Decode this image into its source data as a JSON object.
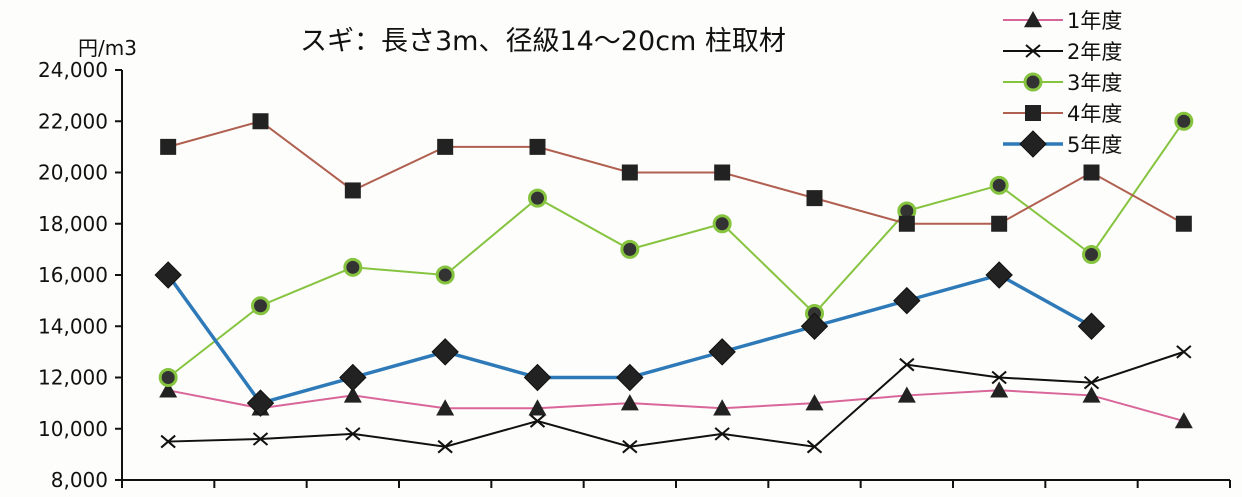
{
  "chart_data": {
    "type": "line",
    "title": "スギ：長さ3m、径級14～20cm 柱取材",
    "ylabel": "円/m3",
    "ylim": [
      8000,
      24000
    ],
    "yticks": [
      "8,000",
      "10,000",
      "12,000",
      "14,000",
      "16,000",
      "18,000",
      "20,000",
      "22,000",
      "24,000"
    ],
    "x": [
      1,
      2,
      3,
      4,
      5,
      6,
      7,
      8,
      9,
      10,
      11,
      12
    ],
    "legend_position": "top-right",
    "grid": false,
    "series": [
      {
        "name": "1年度",
        "marker": "triangle",
        "color": "#d9669a",
        "values": [
          11500,
          10800,
          11300,
          10800,
          10800,
          11000,
          10800,
          11000,
          11300,
          11500,
          11300,
          10300
        ]
      },
      {
        "name": "2年度",
        "marker": "x",
        "color": "#111111",
        "values": [
          9500,
          9600,
          9800,
          9300,
          10300,
          9300,
          9800,
          9300,
          12500,
          12000,
          11800,
          13000
        ]
      },
      {
        "name": "3年度",
        "marker": "circle",
        "color": "#86c440",
        "values": [
          12000,
          14800,
          16300,
          16000,
          19000,
          17000,
          18000,
          14500,
          18500,
          19500,
          16800,
          22000
        ]
      },
      {
        "name": "4年度",
        "marker": "square",
        "color": "#b06050",
        "values": [
          21000,
          22000,
          19300,
          21000,
          21000,
          20000,
          20000,
          19000,
          18000,
          18000,
          20000,
          18000
        ]
      },
      {
        "name": "5年度",
        "marker": "diamond",
        "color": "#2e7ab8",
        "values": [
          16000,
          11000,
          12000,
          13000,
          12000,
          12000,
          13000,
          14000,
          15000,
          16000,
          14000,
          null
        ]
      }
    ]
  }
}
